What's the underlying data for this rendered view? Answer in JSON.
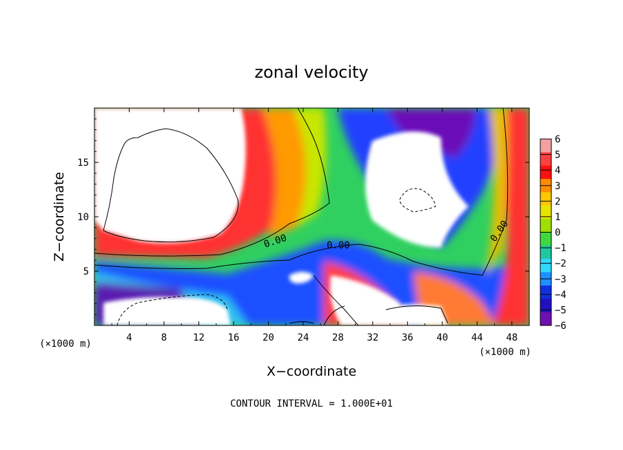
{
  "chart_data": {
    "type": "heatmap",
    "title": "zonal velocity",
    "xlabel": "X−coordinate",
    "ylabel": "Z−coordinate",
    "x_unit": "(×1000 m)",
    "z_unit": "(×1000 m)",
    "xlim": [
      0,
      50
    ],
    "ylim": [
      0,
      20
    ],
    "x_ticks": [
      "4",
      "8",
      "12",
      "16",
      "20",
      "24",
      "28",
      "32",
      "36",
      "40",
      "44",
      "48"
    ],
    "y_ticks": [
      "5",
      "10",
      "15"
    ],
    "colorbar": {
      "levels": [
        "6",
        "5",
        "4",
        "3",
        "2",
        "1",
        "0",
        "−1",
        "−2",
        "−3",
        "−4",
        "−5",
        "−6"
      ],
      "placement": "right"
    },
    "contour_labels": [
      "0.00",
      "0.00",
      "0.00"
    ],
    "footnote": "CONTOUR INTERVAL = 1.000E+01"
  }
}
